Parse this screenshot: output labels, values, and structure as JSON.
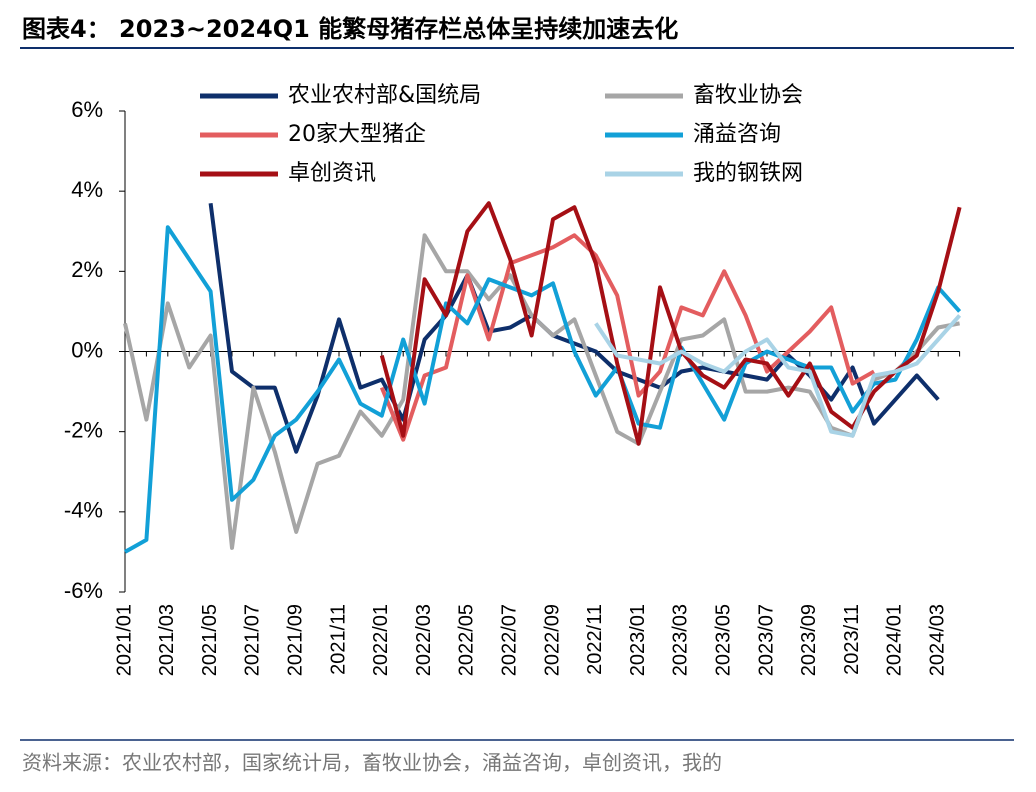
{
  "chart_data": {
    "type": "line",
    "title": "图表4：  2023~2024Q1 能繁母猪存栏总体呈持续加速去化",
    "source": "资料来源：农业农村部，国家统计局，畜牧业协会，涌益咨询，卓创资讯，我的",
    "categories": [
      "2021/01",
      null,
      "2021/03",
      null,
      "2021/05",
      null,
      "2021/07",
      null,
      "2021/09",
      null,
      "2021/11",
      null,
      "2022/01",
      null,
      "2022/03",
      null,
      "2022/05",
      null,
      "2022/07",
      null,
      "2022/09",
      null,
      "2022/11",
      null,
      "2023/01",
      null,
      "2023/03",
      null,
      "2023/05",
      null,
      "2023/07",
      null,
      "2023/09",
      null,
      "2023/11",
      null,
      "2024/01",
      null,
      "2024/03",
      null
    ],
    "ylim": [
      -6,
      6
    ],
    "yticks": [
      {
        "value": -6,
        "label": "-6%"
      },
      {
        "value": -4,
        "label": "-4%"
      },
      {
        "value": -2,
        "label": "-2%"
      },
      {
        "value": 0,
        "label": "0%"
      },
      {
        "value": 2,
        "label": "2%"
      },
      {
        "value": 4,
        "label": "4%"
      },
      {
        "value": 6,
        "label": "6%"
      }
    ],
    "legend_columns": 2,
    "series": [
      {
        "name": "农业农村部&国统局",
        "color": "#0e2f6b",
        "values": [
          null,
          null,
          null,
          null,
          3.7,
          -0.5,
          -0.9,
          -0.9,
          -2.5,
          -1.1,
          0.8,
          -0.9,
          -0.7,
          -1.7,
          0.3,
          0.9,
          1.9,
          0.5,
          0.6,
          0.9,
          0.4,
          0.2,
          0.0,
          -0.5,
          -0.7,
          -0.9,
          -0.5,
          -0.4,
          -0.5,
          -0.6,
          -0.7,
          -0.1,
          -0.6,
          -1.2,
          -0.4,
          -1.8,
          -1.2,
          -0.6,
          -1.2,
          null
        ]
      },
      {
        "name": "畜牧业协会",
        "color": "#a6a6a6",
        "values": [
          0.7,
          -1.7,
          1.2,
          -0.4,
          0.4,
          -4.9,
          -0.9,
          -2.5,
          -4.5,
          -2.8,
          -2.6,
          -1.5,
          -2.1,
          -1.2,
          2.9,
          2.0,
          2.0,
          1.3,
          1.9,
          0.9,
          0.4,
          0.8,
          -0.6,
          -2.0,
          -2.3,
          -1.0,
          0.3,
          0.4,
          0.8,
          -1.0,
          -1.0,
          -0.9,
          -1.0,
          -1.9,
          -2.1,
          -0.7,
          -0.5,
          0.0,
          0.6,
          0.7
        ]
      },
      {
        "name": "20家大型猪企",
        "color": "#e35d5f",
        "values": [
          null,
          null,
          null,
          null,
          null,
          null,
          null,
          null,
          null,
          null,
          null,
          null,
          -0.9,
          -2.2,
          -0.6,
          -0.4,
          1.9,
          0.3,
          2.2,
          2.4,
          2.6,
          2.9,
          2.4,
          1.4,
          -1.1,
          -0.5,
          1.1,
          0.9,
          2.0,
          0.9,
          -0.5,
          0.0,
          0.5,
          1.1,
          -0.8,
          -0.5,
          null,
          null,
          null,
          null
        ]
      },
      {
        "name": "涌益咨询",
        "color": "#12a0d7",
        "values": [
          -5.0,
          -4.7,
          3.1,
          2.3,
          1.5,
          -3.7,
          -3.2,
          -2.1,
          -1.7,
          -1.0,
          -0.2,
          -1.3,
          -1.6,
          0.3,
          -1.3,
          1.2,
          0.7,
          1.8,
          1.6,
          1.4,
          1.7,
          0.0,
          -1.1,
          -0.4,
          -1.8,
          -1.9,
          0.1,
          -0.8,
          -1.7,
          -0.3,
          0.0,
          -0.2,
          -0.4,
          -0.4,
          -1.5,
          -0.8,
          -0.7,
          0.3,
          1.6,
          1.0
        ]
      },
      {
        "name": "卓创资讯",
        "color": "#a50f15",
        "values": [
          null,
          null,
          null,
          null,
          null,
          null,
          null,
          null,
          null,
          null,
          null,
          null,
          -0.1,
          -2.1,
          1.8,
          0.9,
          3.0,
          3.7,
          2.3,
          0.4,
          3.3,
          3.6,
          2.2,
          -0.3,
          -2.3,
          1.6,
          0.0,
          -0.6,
          -0.9,
          -0.2,
          -0.3,
          -1.1,
          -0.3,
          -1.5,
          -1.9,
          -1.0,
          -0.5,
          -0.1,
          1.5,
          3.6
        ]
      },
      {
        "name": "我的钢铁网",
        "color": "#a9d3e6",
        "values": [
          null,
          null,
          null,
          null,
          null,
          null,
          null,
          null,
          null,
          null,
          null,
          null,
          null,
          null,
          null,
          null,
          null,
          null,
          null,
          null,
          null,
          null,
          0.7,
          -0.1,
          -0.2,
          -0.3,
          0.0,
          -0.3,
          -0.5,
          0.0,
          0.3,
          -0.4,
          -0.5,
          -2.0,
          -2.1,
          -0.6,
          -0.5,
          -0.3,
          0.3,
          0.9
        ]
      }
    ]
  }
}
